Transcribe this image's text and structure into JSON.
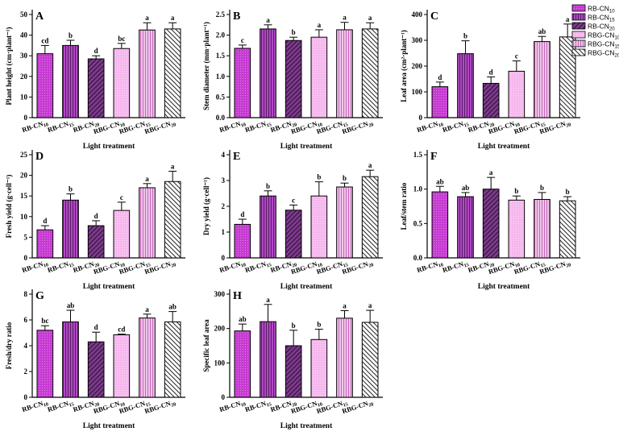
{
  "legend": {
    "items": [
      {
        "label": "RB-CN10"
      },
      {
        "label": "RB-CN15"
      },
      {
        "label": "RB-CN20"
      },
      {
        "label": "RBG-CN10"
      },
      {
        "label": "RBG-CN15"
      },
      {
        "label": "RBG-CN20"
      }
    ]
  },
  "series_colors": [
    "#c53ad1",
    "#a83ab8",
    "#5a2a66",
    "#f6b6ee",
    "#e898dc",
    "#4a4a4a"
  ],
  "chart_data": [
    {
      "panel": "A",
      "type": "bar",
      "ylabel": "Plant height (cm·plant⁻¹)",
      "xlabel": "Light treatment",
      "categories": [
        "RB-CN10",
        "RB-CN15",
        "RB-CN20",
        "RBG-CN10",
        "RBG-CN15",
        "RBG-CN20"
      ],
      "values": [
        31,
        35,
        28.5,
        33.5,
        42.5,
        43
      ],
      "errors": [
        4,
        2.5,
        1.5,
        2.5,
        3.5,
        3
      ],
      "significance": [
        "cd",
        "b",
        "d",
        "bc",
        "a",
        "a"
      ],
      "ylim": [
        0,
        50
      ],
      "yticks": [
        0,
        10,
        20,
        30,
        40,
        50
      ]
    },
    {
      "panel": "B",
      "type": "bar",
      "ylabel": "Stem diameter (mm·plant⁻¹)",
      "xlabel": "Light treatment",
      "categories": [
        "RB-CN10",
        "RB-CN15",
        "RB-CN20",
        "RBG-CN10",
        "RBG-CN15",
        "RBG-CN20"
      ],
      "values": [
        1.68,
        2.15,
        1.87,
        1.95,
        2.13,
        2.15
      ],
      "errors": [
        0.08,
        0.1,
        0.08,
        0.18,
        0.18,
        0.15
      ],
      "significance": [
        "c",
        "a",
        "b",
        "a",
        "a",
        "a"
      ],
      "ylim": [
        0,
        2.5
      ],
      "yticks": [
        0.0,
        0.5,
        1.0,
        1.5,
        2.0,
        2.5
      ]
    },
    {
      "panel": "C",
      "type": "bar",
      "ylabel": "Leaf area (cm²·plant⁻¹)",
      "xlabel": "Light treatment",
      "categories": [
        "RB-CN10",
        "RB-CN15",
        "RB-CN20",
        "RBG-CN10",
        "RBG-CN15",
        "RBG-CN20"
      ],
      "values": [
        120,
        248,
        133,
        180,
        295,
        313
      ],
      "errors": [
        18,
        50,
        25,
        40,
        20,
        50
      ],
      "significance": [
        "d",
        "b",
        "d",
        "c",
        "ab",
        "a"
      ],
      "ylim": [
        0,
        400
      ],
      "yticks": [
        0,
        100,
        200,
        300,
        400
      ]
    },
    {
      "panel": "D",
      "type": "bar",
      "ylabel": "Fresh yield (g·cell⁻¹)",
      "xlabel": "Light treatment",
      "categories": [
        "RB-CN10",
        "RB-CN15",
        "RB-CN20",
        "RBG-CN10",
        "RBG-CN15",
        "RBG-CN20"
      ],
      "values": [
        6.8,
        14,
        7.8,
        11.5,
        17,
        18.5
      ],
      "errors": [
        1,
        1.5,
        1.2,
        2,
        1,
        2.5
      ],
      "significance": [
        "d",
        "b",
        "d",
        "c",
        "a",
        "a"
      ],
      "ylim": [
        0,
        25
      ],
      "yticks": [
        0,
        5,
        10,
        15,
        20,
        25
      ]
    },
    {
      "panel": "E",
      "type": "bar",
      "ylabel": "Dry yield (g·cell⁻¹)",
      "xlabel": "Light treatment",
      "categories": [
        "RB-CN10",
        "RB-CN15",
        "RB-CN20",
        "RBG-CN10",
        "RBG-CN15",
        "RBG-CN20"
      ],
      "values": [
        1.3,
        2.4,
        1.85,
        2.4,
        2.75,
        3.15
      ],
      "errors": [
        0.2,
        0.2,
        0.2,
        0.55,
        0.15,
        0.25
      ],
      "significance": [
        "d",
        "b",
        "c",
        "b",
        "b",
        "a"
      ],
      "ylim": [
        0,
        4
      ],
      "yticks": [
        0,
        1,
        2,
        3,
        4
      ]
    },
    {
      "panel": "F",
      "type": "bar",
      "ylabel": "Leaf/stem ratio",
      "xlabel": "Light treatment",
      "categories": [
        "RB-CN10",
        "RB-CN15",
        "RB-CN20",
        "RBG-CN10",
        "RBG-CN15",
        "RBG-CN20"
      ],
      "values": [
        0.96,
        0.89,
        1.0,
        0.84,
        0.85,
        0.83
      ],
      "errors": [
        0.08,
        0.06,
        0.17,
        0.06,
        0.1,
        0.06
      ],
      "significance": [
        "ab",
        "ab",
        "a",
        "b",
        "b",
        "b"
      ],
      "ylim": [
        0,
        1.5
      ],
      "yticks": [
        0.0,
        0.5,
        1.0,
        1.5
      ]
    },
    {
      "panel": "G",
      "type": "bar",
      "ylabel": "Fresh/dry ratio",
      "xlabel": "Light treatment",
      "categories": [
        "RB-CN10",
        "RB-CN15",
        "RB-CN20",
        "RBG-CN10",
        "RBG-CN15",
        "RBG-CN20"
      ],
      "values": [
        5.2,
        5.85,
        4.3,
        4.85,
        6.15,
        5.85
      ],
      "errors": [
        0.35,
        0.9,
        0.75,
        0.05,
        0.3,
        0.8
      ],
      "significance": [
        "bc",
        "ab",
        "d",
        "cd",
        "a",
        "ab"
      ],
      "ylim": [
        0,
        8
      ],
      "yticks": [
        0,
        2,
        4,
        6,
        8
      ]
    },
    {
      "panel": "H",
      "type": "bar",
      "ylabel": "Specific leaf area",
      "xlabel": "Light treatment",
      "categories": [
        "RB-CN10",
        "RB-CN15",
        "RB-CN20",
        "RBG-CN10",
        "RBG-CN15",
        "RBG-CN20"
      ],
      "values": [
        193,
        220,
        150,
        168,
        230,
        218
      ],
      "errors": [
        20,
        50,
        45,
        30,
        22,
        35
      ],
      "significance": [
        "ab",
        "a",
        "b",
        "b",
        "a",
        "a"
      ],
      "ylim": [
        0,
        300
      ],
      "yticks": [
        0,
        100,
        200,
        300
      ]
    }
  ]
}
